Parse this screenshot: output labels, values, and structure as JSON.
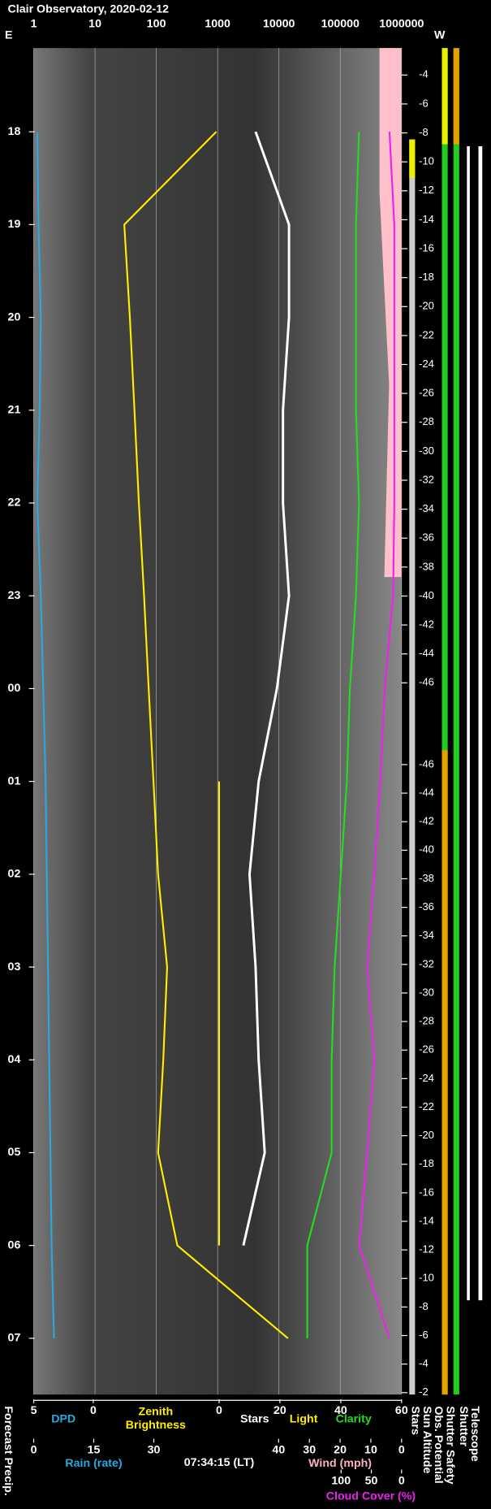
{
  "chart_data": {
    "type": "line",
    "title": "Clair Observatory, 2020-02-12",
    "left_header": "E",
    "right_header": "W",
    "categories": [
      "18",
      "19",
      "20",
      "21",
      "22",
      "23",
      "00",
      "01",
      "02",
      "03",
      "04",
      "05",
      "06",
      "07"
    ],
    "altitude_evening": [
      -4,
      -6,
      -8,
      -10,
      -12,
      -14,
      -16,
      -18,
      -20,
      -22,
      -24,
      -26,
      -28,
      -30,
      -32,
      -34,
      -36,
      -38,
      -40,
      -42,
      -44,
      -46
    ],
    "altitude_morning": [
      -46,
      -44,
      -42,
      -40,
      -38,
      -36,
      -34,
      -32,
      -30,
      -28,
      -26,
      -24,
      -22,
      -20,
      -18,
      -16,
      -14,
      -12,
      -10,
      -8,
      -6,
      -4,
      -2
    ],
    "scales": [
      {
        "lim": [
          1,
          1000000
        ],
        "ticks": [
          1,
          10,
          100,
          1000,
          10000,
          100000,
          1000000
        ],
        "log": true,
        "grid": true
      },
      {
        "lim": [
          5,
          0
        ],
        "ticks": [
          5,
          0
        ]
      },
      {
        "lim": [
          0,
          60
        ],
        "ticks": [
          0,
          20,
          40,
          60
        ]
      },
      {
        "label": "Rain (rate)",
        "lim": [
          0,
          30
        ],
        "ticks": [
          0,
          15,
          30
        ]
      },
      {
        "label": "Wind (mph)",
        "lim": [
          40,
          0
        ],
        "ticks": [
          40,
          30,
          20,
          10,
          0
        ]
      },
      {
        "lim": [
          100,
          0
        ],
        "ticks": [
          100,
          50,
          0
        ]
      }
    ],
    "time_label": "07:34:15 (LT)",
    "series": [
      {
        "name": "DPD",
        "color": "#29a9e0",
        "scale": 1,
        "values": [
          4.7,
          4.6,
          4.4,
          4.5,
          4.7,
          4.4,
          4.2,
          4.0,
          3.9,
          3.8,
          3.7,
          3.6,
          3.5,
          3.3
        ]
      },
      {
        "name": "Zenith Brightness",
        "color": "#ffee00",
        "scale": 0,
        "values": [
          950,
          30,
          37,
          44,
          52,
          63,
          75,
          90,
          107,
          150,
          130,
          107,
          220,
          14000
        ]
      },
      {
        "name": "Stars",
        "color": "#ffffff",
        "scale": 2,
        "values": [
          12,
          23,
          23,
          21,
          21,
          23,
          19,
          13,
          10,
          12,
          13,
          15,
          8,
          null
        ]
      },
      {
        "name": "Light",
        "color": "#ffee00",
        "scale": 2,
        "values": [
          null,
          null,
          null,
          null,
          null,
          null,
          null,
          0,
          0,
          0,
          0,
          0,
          0,
          null
        ]
      },
      {
        "name": "Clarity",
        "color": "#22dd22",
        "scale": 2,
        "values": [
          46,
          45,
          45,
          45,
          46,
          45,
          43,
          42,
          40,
          38,
          37,
          37,
          29,
          29
        ]
      },
      {
        "name": "Cloud Cover (%)",
        "color": "#ee22ee",
        "scale": 5,
        "values": [
          20,
          12,
          12,
          12,
          12,
          14,
          28,
          35,
          45,
          57,
          45,
          57,
          70,
          20
        ]
      }
    ],
    "side_labels": [
      "Forecast Precip.",
      "Stars",
      "Sun Altitude",
      "Obs. Potential",
      "Shutter Safety",
      "Shutter",
      "Telescope"
    ]
  }
}
